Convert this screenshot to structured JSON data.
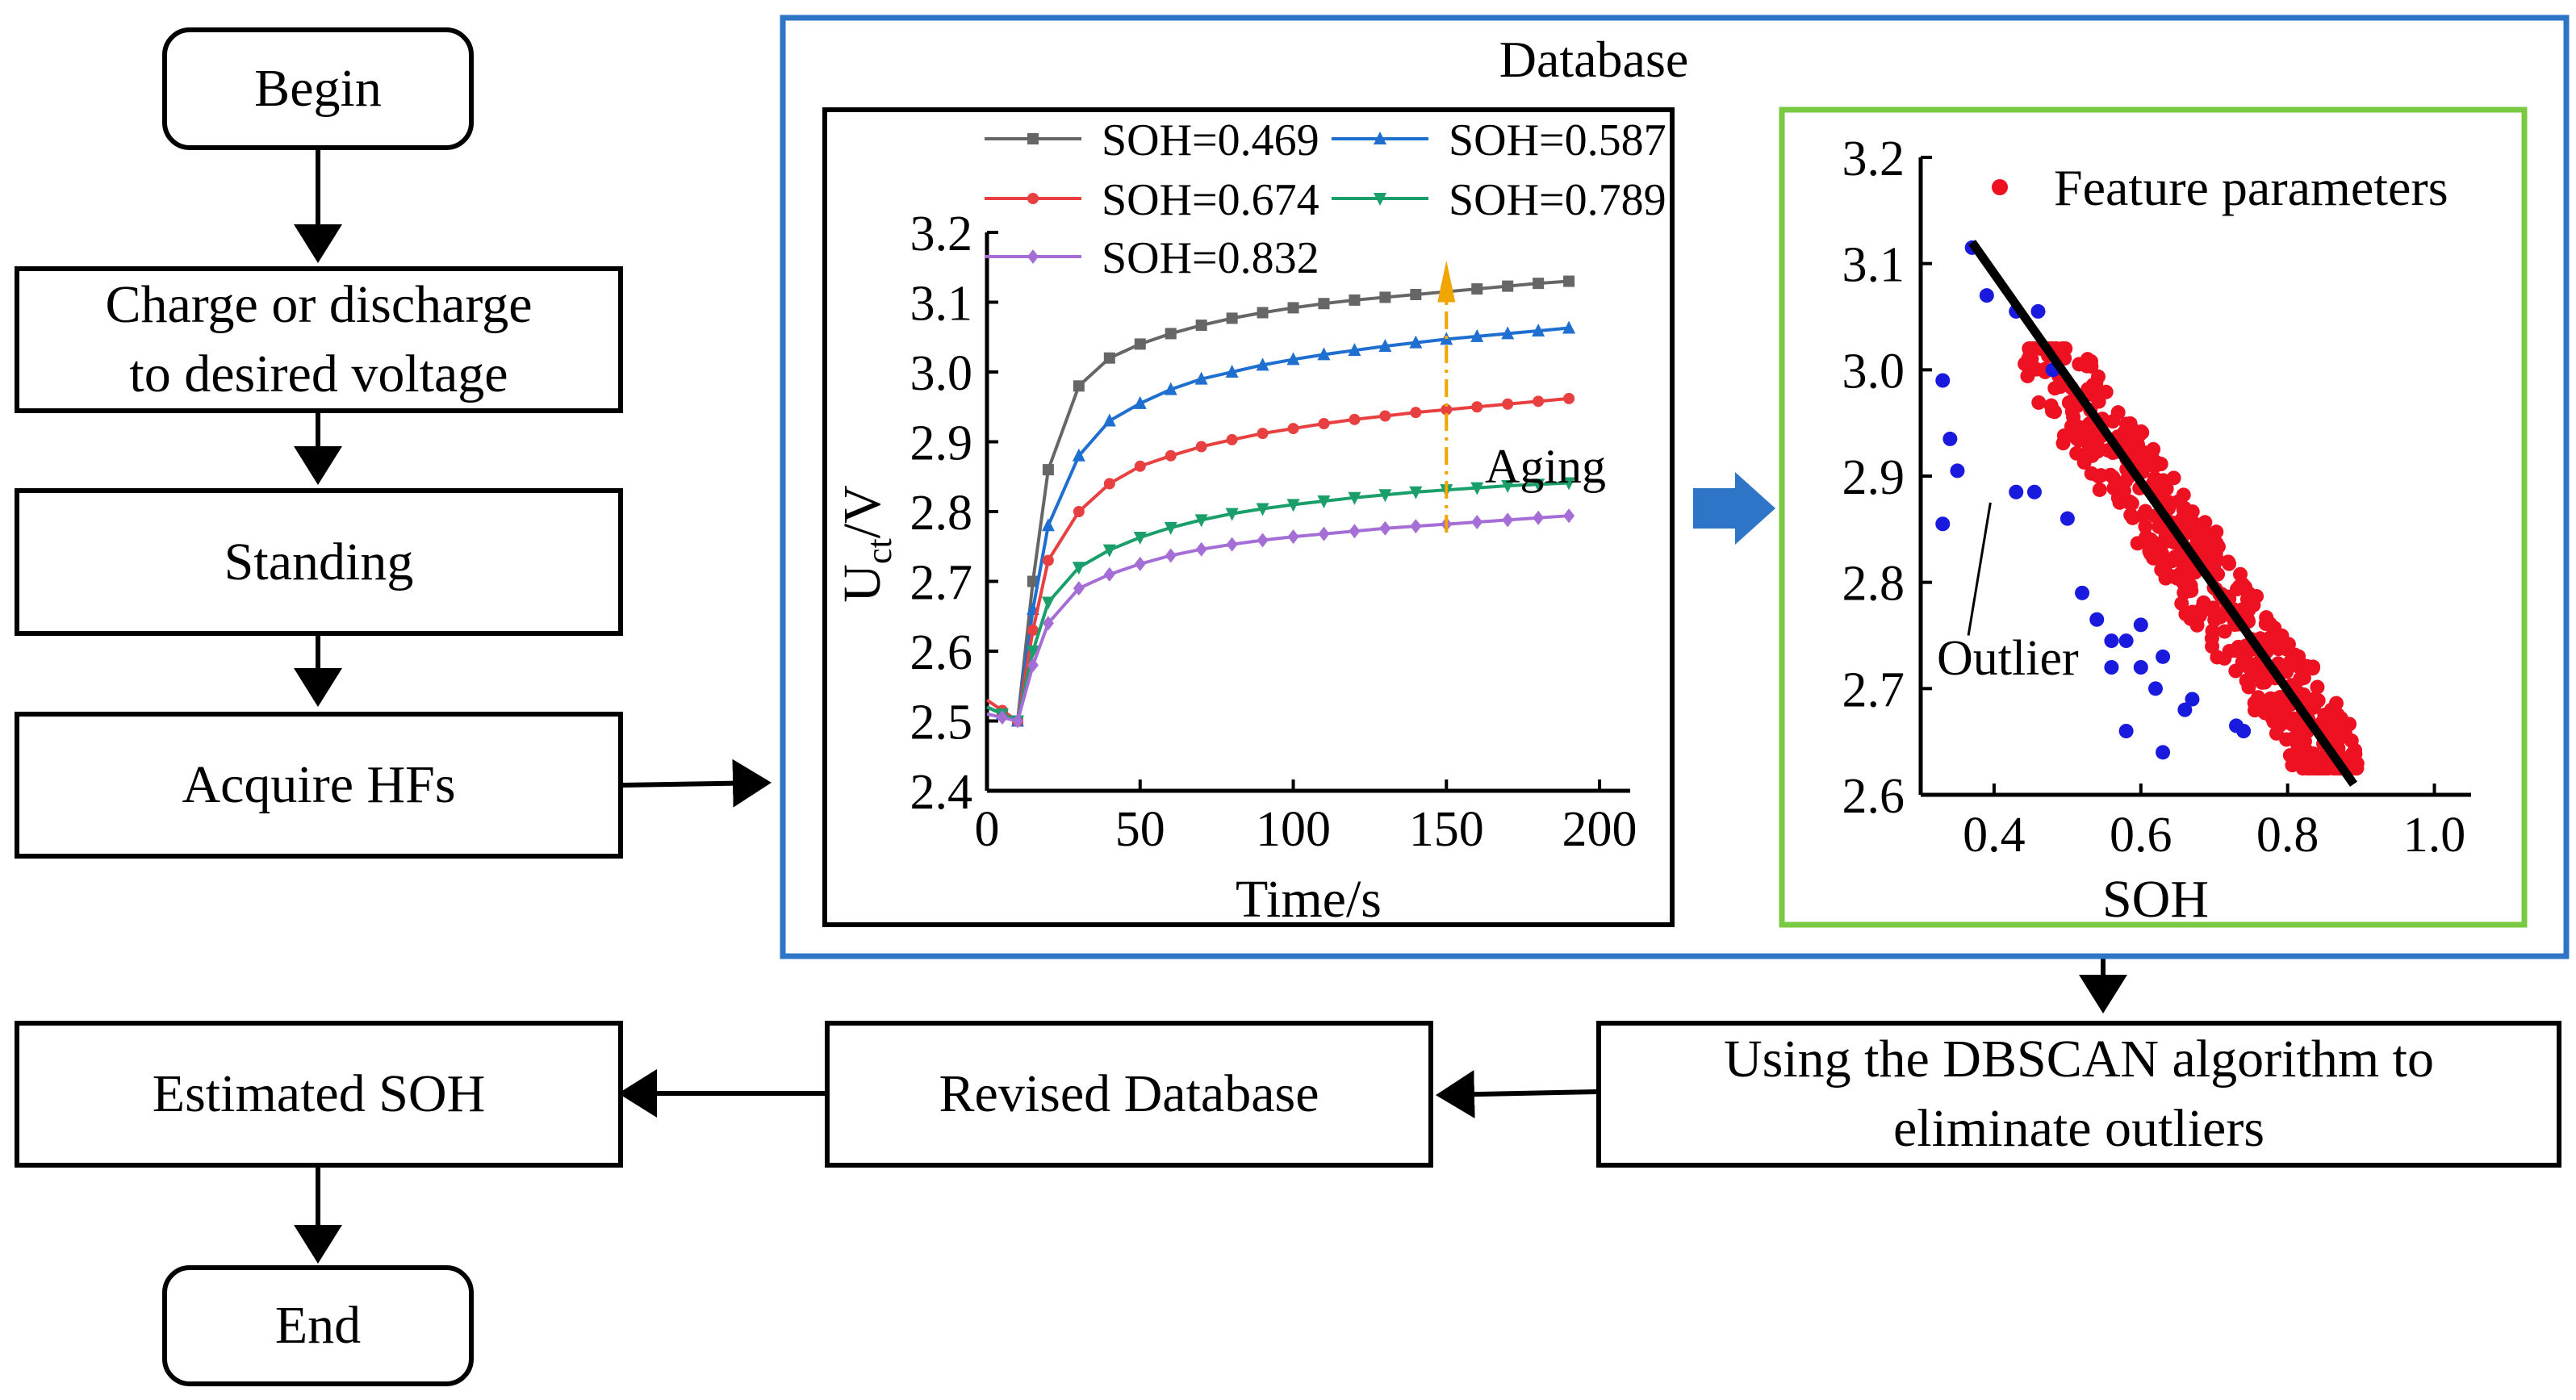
{
  "flow": {
    "begin": "Begin",
    "charge": "Charge or discharge\nto desired voltage",
    "standing": "Standing",
    "acquire": "Acquire HFs",
    "estimated": "Estimated SOH",
    "end": "End",
    "revised": "Revised Database",
    "dbscan": "Using the DBSCAN algorithm to\neliminate outliers"
  },
  "database": {
    "title": "Database",
    "border_color": "#2e75c8",
    "inner_border_color": "#7ac943",
    "arrow_color": "#2e75c8"
  },
  "chart_data": [
    {
      "type": "line",
      "title": "",
      "xlabel": "Time/s",
      "ylabel": "U",
      "ylabel_sub": "ct",
      "ylabel_suffix": "/V",
      "xlim": [
        0,
        210
      ],
      "ylim": [
        2.4,
        3.2
      ],
      "xticks": [
        0,
        50,
        100,
        150,
        200
      ],
      "yticks": [
        "2.4",
        "2.5",
        "2.6",
        "2.7",
        "2.8",
        "2.9",
        "3.0",
        "3.1",
        "3.2"
      ],
      "annotation": "Aging",
      "annotation_color": "#f0a500",
      "x": [
        0,
        5,
        10,
        15,
        20,
        30,
        40,
        50,
        60,
        70,
        80,
        90,
        100,
        110,
        120,
        130,
        140,
        150,
        160,
        170,
        180,
        190
      ],
      "series": [
        {
          "name": "SOH=0.469",
          "color": "#666666",
          "marker": "square",
          "start": 2.52,
          "values": [
            2.52,
            2.51,
            2.5,
            2.7,
            2.86,
            2.98,
            3.02,
            3.04,
            3.055,
            3.067,
            3.077,
            3.085,
            3.092,
            3.098,
            3.103,
            3.107,
            3.111,
            3.115,
            3.119,
            3.123,
            3.127,
            3.13
          ]
        },
        {
          "name": "SOH=0.587",
          "color": "#1f6fd0",
          "marker": "triangle",
          "start": 2.52,
          "values": [
            2.52,
            2.51,
            2.5,
            2.66,
            2.78,
            2.88,
            2.93,
            2.955,
            2.975,
            2.99,
            3.0,
            3.01,
            3.018,
            3.025,
            3.031,
            3.037,
            3.042,
            3.047,
            3.051,
            3.055,
            3.059,
            3.063
          ]
        },
        {
          "name": "SOH=0.674",
          "color": "#e84040",
          "marker": "circle",
          "start": 2.53,
          "values": [
            2.53,
            2.515,
            2.5,
            2.63,
            2.73,
            2.8,
            2.84,
            2.865,
            2.88,
            2.893,
            2.903,
            2.912,
            2.919,
            2.926,
            2.932,
            2.937,
            2.942,
            2.946,
            2.95,
            2.954,
            2.958,
            2.962
          ]
        },
        {
          "name": "SOH=0.789",
          "color": "#1a9e6a",
          "marker": "triangle-down",
          "start": 2.52,
          "values": [
            2.52,
            2.51,
            2.5,
            2.6,
            2.67,
            2.72,
            2.745,
            2.763,
            2.777,
            2.788,
            2.797,
            2.804,
            2.81,
            2.815,
            2.82,
            2.824,
            2.828,
            2.831,
            2.834,
            2.837,
            2.839,
            2.841
          ]
        },
        {
          "name": "SOH=0.832",
          "color": "#a56ed6",
          "marker": "diamond",
          "start": 2.51,
          "values": [
            2.51,
            2.505,
            2.5,
            2.58,
            2.64,
            2.69,
            2.71,
            2.725,
            2.737,
            2.746,
            2.753,
            2.759,
            2.764,
            2.768,
            2.772,
            2.776,
            2.779,
            2.782,
            2.785,
            2.788,
            2.791,
            2.794
          ]
        }
      ]
    },
    {
      "type": "scatter",
      "title": "",
      "xlabel": "SOH",
      "ylabel": "",
      "xlim": [
        0.3,
        1.05
      ],
      "ylim": [
        2.6,
        3.2
      ],
      "xticks": [
        "0.4",
        "0.6",
        "0.8",
        "1.0"
      ],
      "yticks": [
        "2.6",
        "2.7",
        "2.8",
        "2.9",
        "3.0",
        "3.1",
        "3.2"
      ],
      "legend": "Feature parameters",
      "inlier_color": "#ee1122",
      "outlier_color": "#1a1adf",
      "annotation": "Outlier",
      "fit_line": {
        "x": [
          0.37,
          0.89
        ],
        "y": [
          3.12,
          2.61
        ]
      },
      "outliers": [
        {
          "x": 0.37,
          "y": 3.115
        },
        {
          "x": 0.39,
          "y": 3.07
        },
        {
          "x": 0.43,
          "y": 3.055
        },
        {
          "x": 0.46,
          "y": 3.055
        },
        {
          "x": 0.33,
          "y": 2.99
        },
        {
          "x": 0.34,
          "y": 2.935
        },
        {
          "x": 0.35,
          "y": 2.905
        },
        {
          "x": 0.33,
          "y": 2.855
        },
        {
          "x": 0.43,
          "y": 2.885
        },
        {
          "x": 0.455,
          "y": 2.885
        },
        {
          "x": 0.48,
          "y": 3.0
        },
        {
          "x": 0.5,
          "y": 2.86
        },
        {
          "x": 0.52,
          "y": 2.79
        },
        {
          "x": 0.54,
          "y": 2.765
        },
        {
          "x": 0.56,
          "y": 2.745
        },
        {
          "x": 0.58,
          "y": 2.745
        },
        {
          "x": 0.6,
          "y": 2.72
        },
        {
          "x": 0.6,
          "y": 2.76
        },
        {
          "x": 0.62,
          "y": 2.7
        },
        {
          "x": 0.58,
          "y": 2.66
        },
        {
          "x": 0.63,
          "y": 2.64
        },
        {
          "x": 0.66,
          "y": 2.68
        },
        {
          "x": 0.67,
          "y": 2.69
        },
        {
          "x": 0.73,
          "y": 2.665
        },
        {
          "x": 0.74,
          "y": 2.66
        },
        {
          "x": 0.56,
          "y": 2.72
        },
        {
          "x": 0.63,
          "y": 2.73
        }
      ]
    }
  ]
}
